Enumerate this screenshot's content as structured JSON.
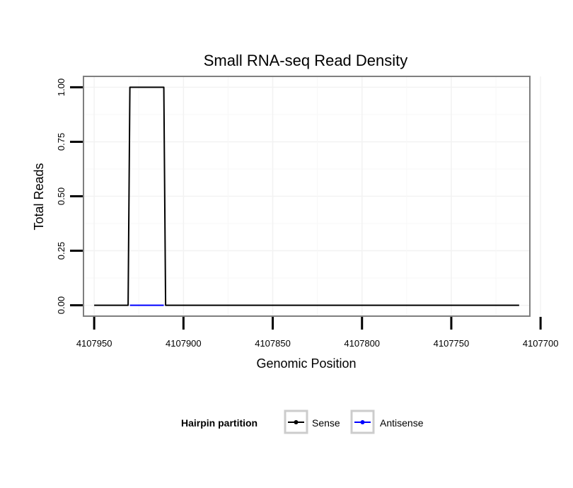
{
  "chart_data": {
    "type": "line",
    "title": "Small RNA-seq Read Density",
    "xlabel": "Genomic Position",
    "ylabel": "Total Reads",
    "x_reversed": true,
    "xlim": [
      4107956,
      4107706
    ],
    "ylim": [
      -0.05,
      1.05
    ],
    "x_ticks": [
      4107950,
      4107900,
      4107850,
      4107800,
      4107750,
      4107700
    ],
    "x_tick_labels": [
      "4107950",
      "4107900",
      "4107850",
      "4107800",
      "4107750",
      "4107700"
    ],
    "y_ticks": [
      0,
      0.25,
      0.5,
      0.75,
      1.0
    ],
    "y_tick_labels": [
      "0.00",
      "0.25",
      "0.50",
      "0.75",
      "1.00"
    ],
    "grid": true,
    "legend": {
      "title": "Hairpin partition",
      "position": "bottom",
      "entries": [
        {
          "label": "Sense",
          "color": "#000000"
        },
        {
          "label": "Antisense",
          "color": "#0000ff"
        }
      ]
    },
    "series": [
      {
        "name": "Sense",
        "color": "#000000",
        "x": [
          4107950,
          4107931,
          4107930,
          4107911,
          4107910,
          4107712
        ],
        "y": [
          0,
          0,
          1,
          1,
          0,
          0
        ]
      },
      {
        "name": "Antisense",
        "color": "#0000ff",
        "x": [
          4107930,
          4107911
        ],
        "y": [
          0,
          0
        ]
      }
    ]
  }
}
